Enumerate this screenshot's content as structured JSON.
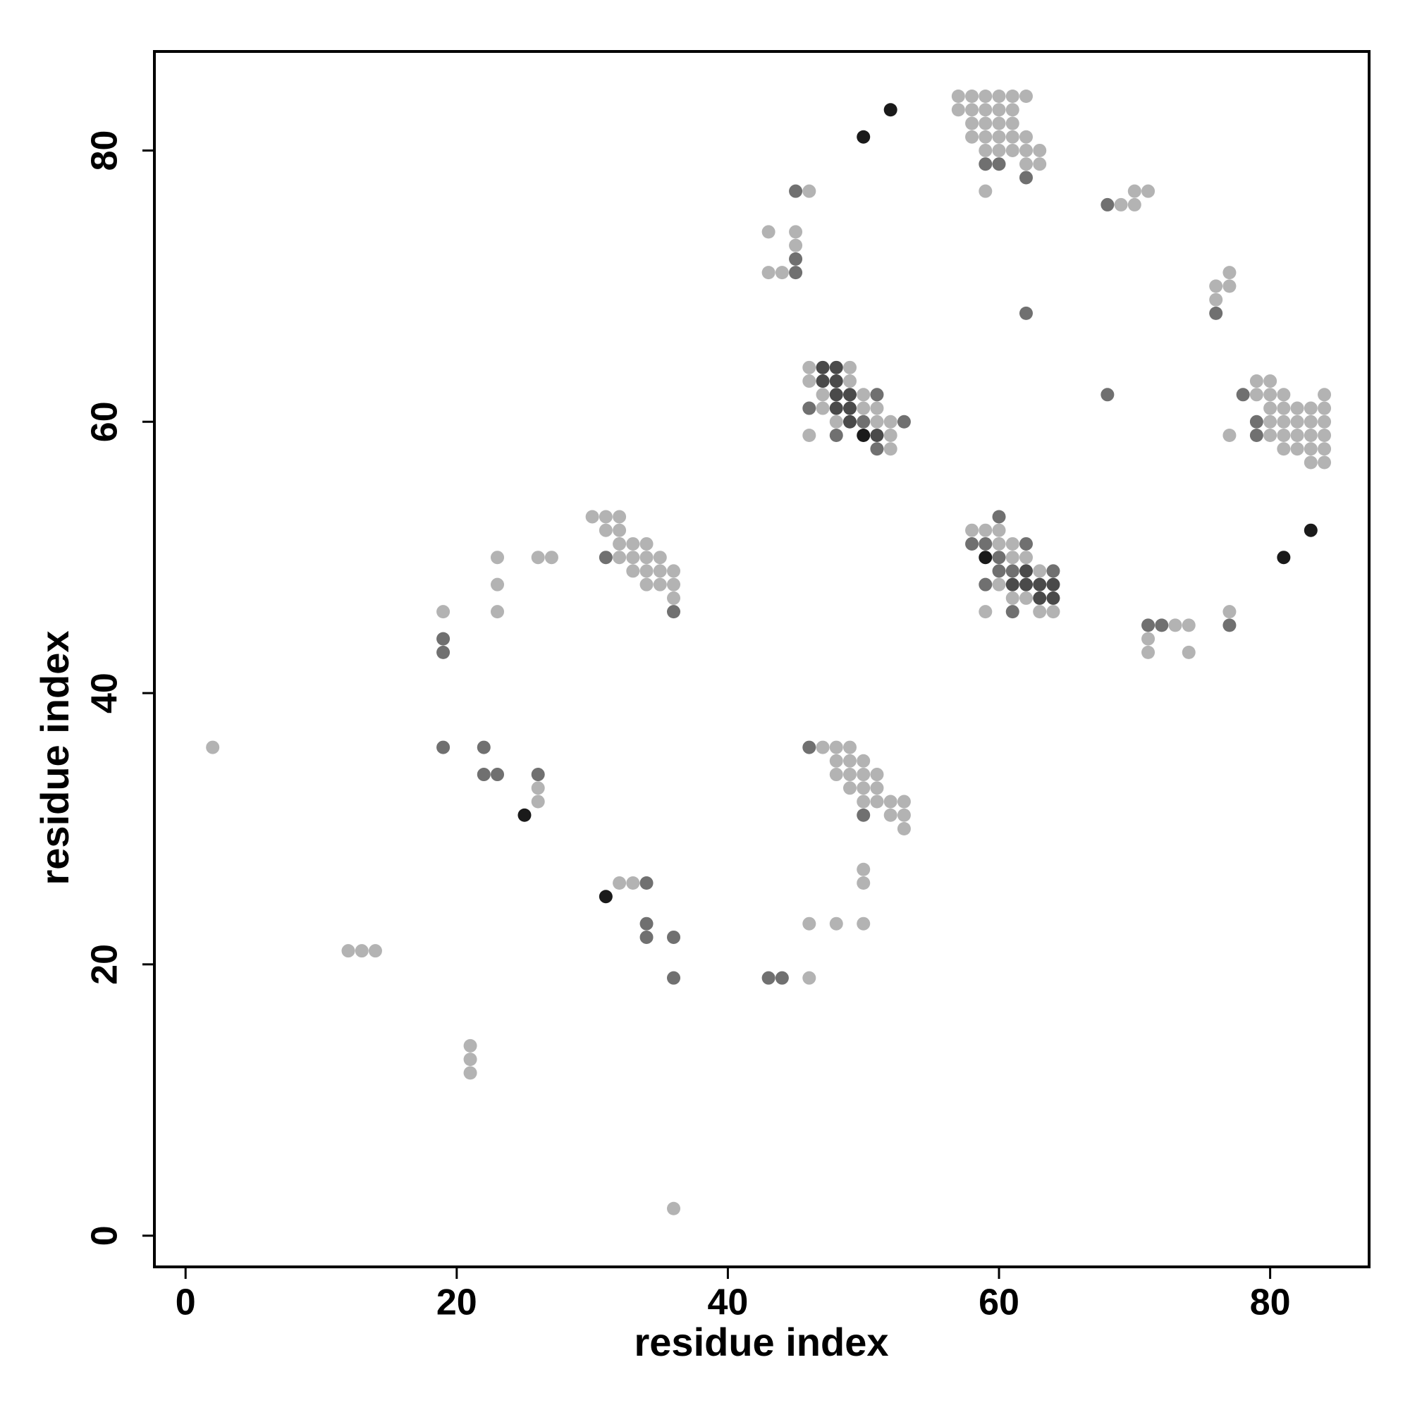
{
  "chart_data": {
    "type": "scatter",
    "xlabel": "residue index",
    "ylabel": "residue index",
    "xlim": [
      -2.3,
      87.3
    ],
    "ylim": [
      -2.3,
      87.3
    ],
    "xticks": [
      0,
      20,
      40,
      60,
      80
    ],
    "yticks": [
      0,
      20,
      40,
      60,
      80
    ],
    "series": [
      {
        "color": "#b3b3b3",
        "x": [
          57,
          58,
          59,
          60,
          61,
          62,
          57,
          58,
          59,
          60,
          61,
          58,
          59,
          60,
          61,
          58,
          59,
          60,
          61,
          62,
          59,
          60,
          61,
          62,
          63,
          62,
          63,
          59,
          46,
          43,
          45,
          45,
          43,
          44,
          69,
          70,
          70,
          71,
          77,
          76,
          77,
          76,
          46,
          49,
          46,
          49,
          47,
          50,
          47,
          50,
          51,
          48,
          51,
          52,
          46,
          52,
          52,
          79,
          80,
          79,
          80,
          81,
          84,
          80,
          81,
          82,
          83,
          84,
          80,
          81,
          82,
          83,
          84,
          77,
          80,
          81,
          82,
          83,
          84,
          81,
          82,
          83,
          84,
          83,
          84,
          58,
          59,
          60,
          60,
          61,
          61,
          62,
          63,
          60,
          61,
          62,
          59,
          63,
          64,
          77,
          73,
          74,
          71,
          71,
          74,
          30,
          31,
          32,
          31,
          32,
          32,
          33,
          34,
          32,
          33,
          34,
          35,
          33,
          34,
          35,
          36,
          34,
          35,
          36,
          36,
          23,
          23,
          23,
          26,
          27,
          19,
          2,
          26,
          26,
          47,
          48,
          49,
          48,
          49,
          50,
          48,
          49,
          50,
          51,
          49,
          50,
          51,
          50,
          51,
          52,
          53,
          52,
          53,
          53,
          50,
          50,
          46,
          48,
          50,
          32,
          33,
          46,
          12,
          13,
          14,
          21,
          21,
          21,
          36
        ],
        "y": [
          84,
          84,
          84,
          84,
          84,
          84,
          83,
          83,
          83,
          83,
          83,
          82,
          82,
          82,
          82,
          81,
          81,
          81,
          81,
          81,
          80,
          80,
          80,
          80,
          80,
          79,
          79,
          77,
          77,
          74,
          74,
          73,
          71,
          71,
          76,
          76,
          77,
          77,
          71,
          70,
          70,
          69,
          64,
          64,
          63,
          63,
          62,
          62,
          61,
          61,
          61,
          60,
          60,
          60,
          59,
          59,
          58,
          63,
          63,
          62,
          62,
          62,
          62,
          61,
          61,
          61,
          61,
          61,
          60,
          60,
          60,
          60,
          60,
          59,
          59,
          59,
          59,
          59,
          59,
          58,
          58,
          58,
          58,
          57,
          57,
          52,
          52,
          52,
          51,
          51,
          50,
          50,
          49,
          48,
          47,
          47,
          46,
          46,
          46,
          46,
          45,
          45,
          44,
          43,
          43,
          53,
          53,
          53,
          52,
          52,
          51,
          51,
          51,
          50,
          50,
          50,
          50,
          49,
          49,
          49,
          49,
          48,
          48,
          48,
          47,
          50,
          48,
          46,
          50,
          50,
          46,
          36,
          33,
          32,
          36,
          36,
          36,
          35,
          35,
          35,
          34,
          34,
          34,
          34,
          33,
          33,
          33,
          32,
          32,
          32,
          32,
          31,
          31,
          30,
          27,
          26,
          23,
          23,
          23,
          26,
          26,
          19,
          21,
          21,
          21,
          14,
          13,
          12,
          2
        ]
      },
      {
        "color": "#707070",
        "x": [
          59,
          60,
          62,
          45,
          45,
          45,
          68,
          76,
          62,
          68,
          51,
          46,
          50,
          53,
          48,
          51,
          78,
          79,
          79,
          60,
          58,
          59,
          62,
          60,
          60,
          61,
          64,
          59,
          61,
          77,
          71,
          72,
          31,
          36,
          19,
          19,
          19,
          22,
          22,
          23,
          26,
          46,
          50,
          34,
          34,
          34,
          36,
          36,
          43,
          44
        ],
        "y": [
          79,
          79,
          78,
          77,
          72,
          71,
          76,
          68,
          68,
          62,
          62,
          61,
          60,
          60,
          59,
          58,
          62,
          60,
          59,
          53,
          51,
          51,
          51,
          50,
          49,
          49,
          49,
          48,
          46,
          45,
          45,
          45,
          50,
          46,
          44,
          43,
          36,
          36,
          34,
          34,
          34,
          36,
          31,
          26,
          23,
          22,
          22,
          19,
          19,
          19
        ]
      },
      {
        "color": "#4a4a4a",
        "x": [
          47,
          48,
          47,
          48,
          48,
          49,
          48,
          49,
          49,
          51,
          62,
          61,
          62,
          63,
          64,
          63,
          64
        ],
        "y": [
          64,
          64,
          63,
          63,
          62,
          62,
          61,
          61,
          60,
          59,
          49,
          48,
          48,
          48,
          48,
          47,
          47
        ]
      },
      {
        "color": "#1a1a1a",
        "x": [
          50,
          52,
          50,
          81,
          83,
          59,
          25,
          31
        ],
        "y": [
          81,
          83,
          59,
          50,
          52,
          50,
          31,
          25
        ]
      }
    ]
  }
}
